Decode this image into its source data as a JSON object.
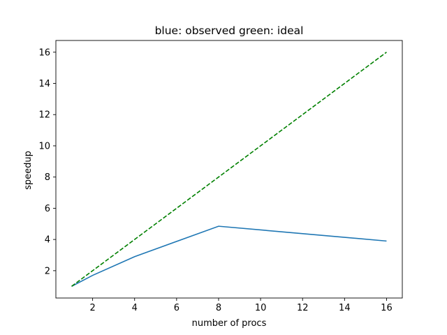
{
  "chart_data": {
    "type": "line",
    "title": "blue: observed green: ideal",
    "xlabel": "number of procs",
    "ylabel": "speedup",
    "xlim": [
      0.25,
      16.75
    ],
    "ylim": [
      0.25,
      16.75
    ],
    "xticks": [
      2,
      4,
      6,
      8,
      10,
      12,
      14,
      16
    ],
    "yticks": [
      2,
      4,
      6,
      8,
      10,
      12,
      14,
      16
    ],
    "grid": false,
    "series": [
      {
        "x": [
          1,
          2,
          4,
          8,
          16
        ],
        "y": [
          1.0,
          1.7,
          2.9,
          4.85,
          3.9
        ],
        "color": "#1f77b4",
        "style": "solid"
      },
      {
        "x": [
          1,
          2,
          4,
          8,
          16
        ],
        "y": [
          1,
          2,
          4,
          8,
          16
        ],
        "color": "#008000",
        "style": "dashed"
      }
    ]
  }
}
